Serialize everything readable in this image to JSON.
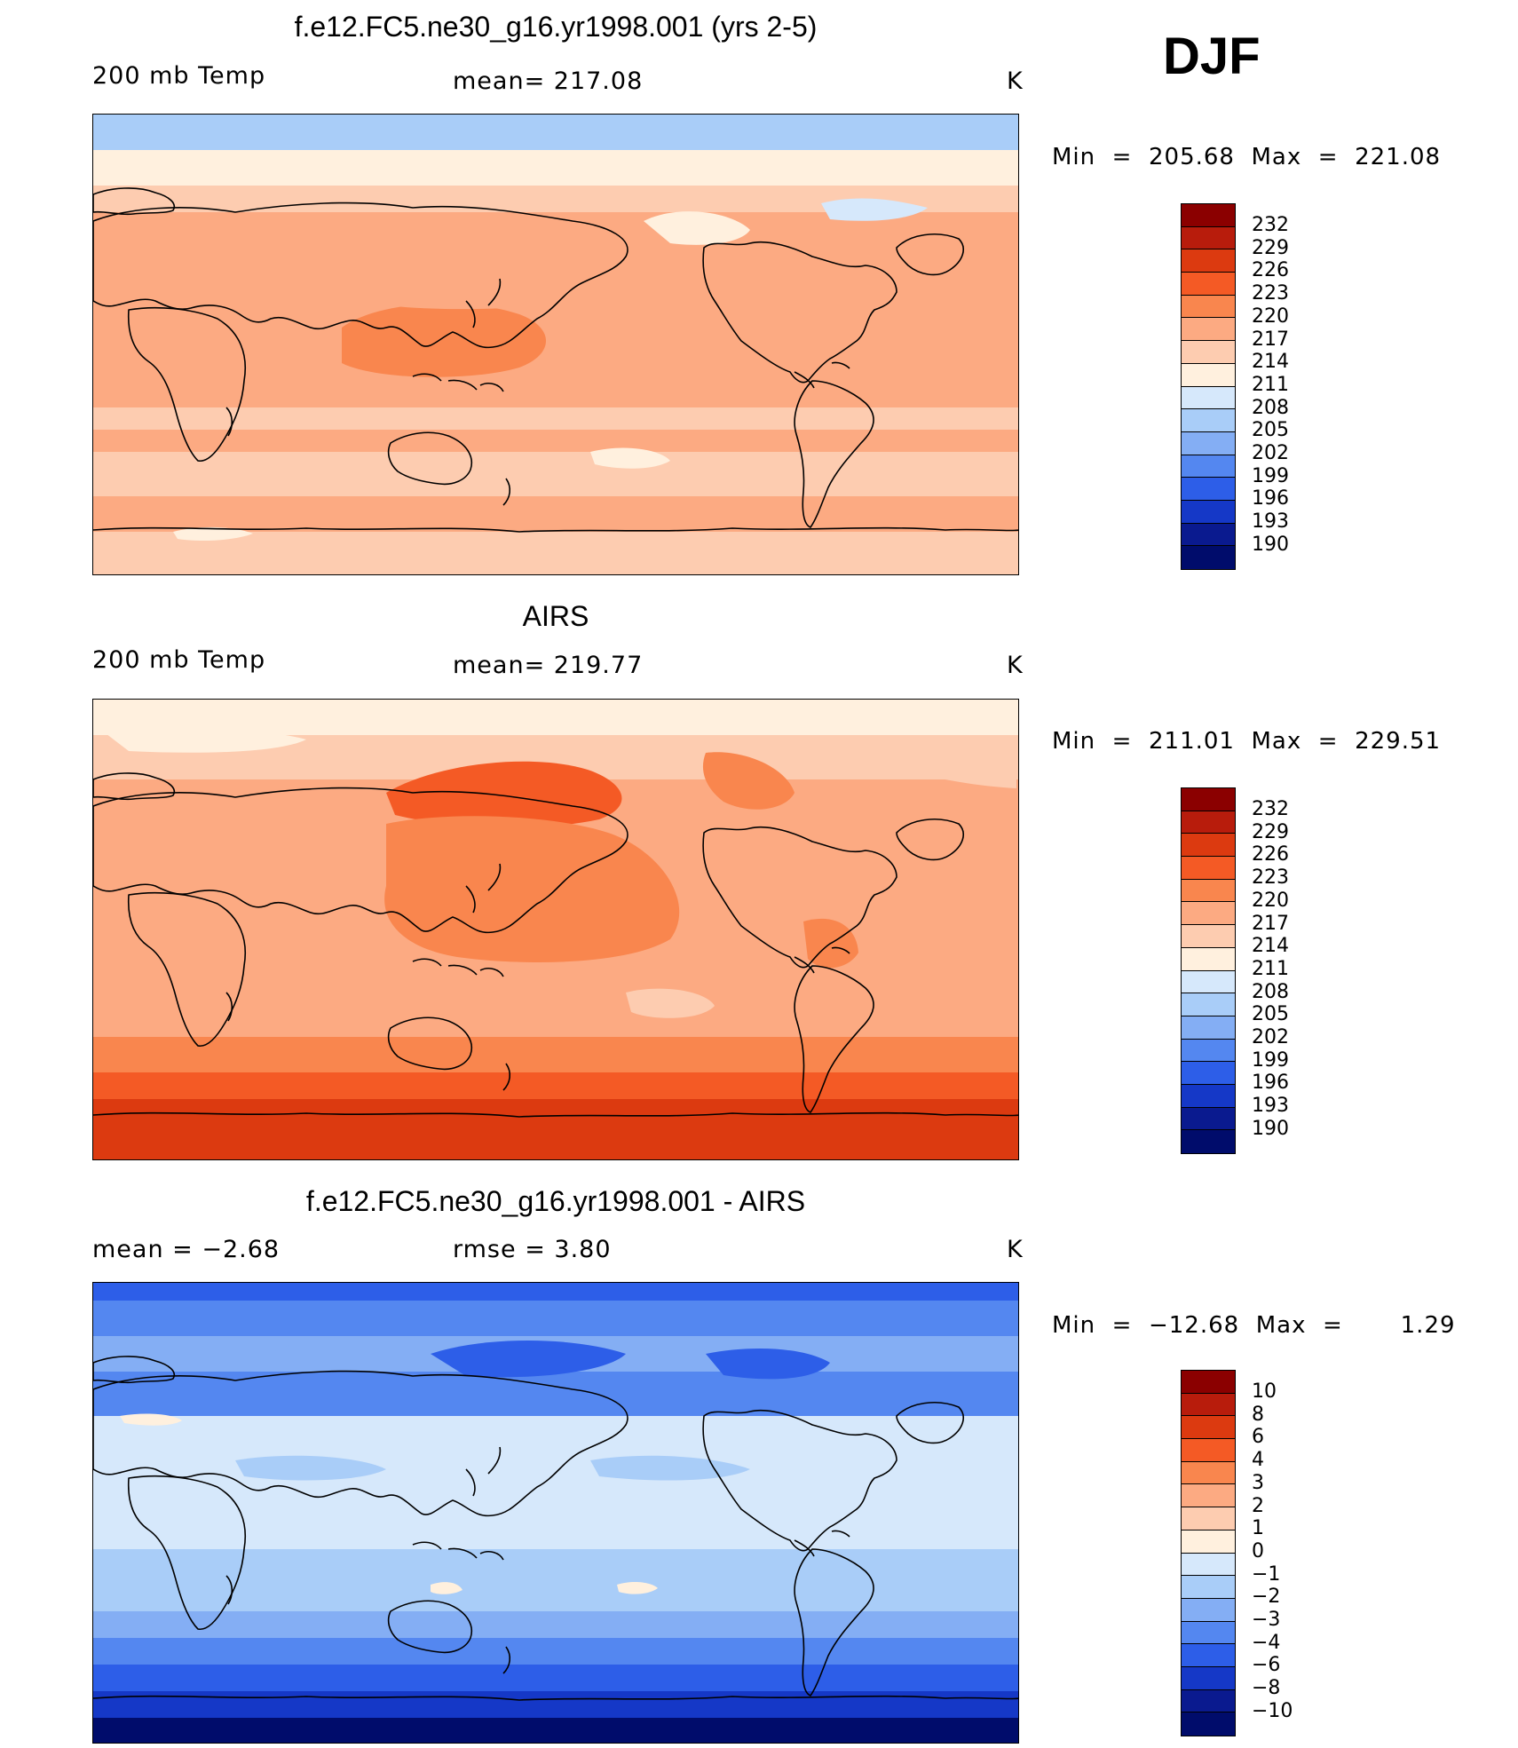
{
  "season": "DJF",
  "panels": [
    {
      "title": "f.e12.FC5.ne30_g16.yr1998.001 (yrs 2-5)",
      "left_label": "200 mb Temp",
      "mid_label": "mean= 217.08",
      "unit": "K",
      "minmax": "Min  =  205.68  Max  =  221.08",
      "palette": "warm-model",
      "colorbar": {
        "labels": [
          "232",
          "229",
          "226",
          "223",
          "220",
          "217",
          "214",
          "211",
          "208",
          "205",
          "202",
          "199",
          "196",
          "193",
          "190"
        ],
        "colors": [
          "#8b0000",
          "#b81c0c",
          "#dc3a10",
          "#f45a25",
          "#f9864e",
          "#fcaa82",
          "#fdccb0",
          "#fff0de",
          "#d6e8fb",
          "#a9cdf8",
          "#84aef4",
          "#5487f0",
          "#2d5ee8",
          "#1538c7",
          "#0a1a8f",
          "#000c6b"
        ]
      }
    },
    {
      "title": "AIRS",
      "left_label": "200 mb Temp",
      "mid_label": "mean= 219.77",
      "unit": "K",
      "minmax": "Min  =  211.01  Max  =  229.51",
      "palette": "warm-obs",
      "colorbar": {
        "labels": [
          "232",
          "229",
          "226",
          "223",
          "220",
          "217",
          "214",
          "211",
          "208",
          "205",
          "202",
          "199",
          "196",
          "193",
          "190"
        ],
        "colors": [
          "#8b0000",
          "#b81c0c",
          "#dc3a10",
          "#f45a25",
          "#f9864e",
          "#fcaa82",
          "#fdccb0",
          "#fff0de",
          "#d6e8fb",
          "#a9cdf8",
          "#84aef4",
          "#5487f0",
          "#2d5ee8",
          "#1538c7",
          "#0a1a8f",
          "#000c6b"
        ]
      }
    },
    {
      "title": "f.e12.FC5.ne30_g16.yr1998.001 - AIRS",
      "left_label": "mean  =    −2.68",
      "mid_label": "rmse  =     3.80",
      "unit": "K",
      "minmax": "Min  =  −12.68  Max  =       1.29",
      "palette": "diff",
      "colorbar": {
        "labels": [
          "10",
          "8",
          "6",
          "4",
          "3",
          "2",
          "1",
          "0",
          "−1",
          "−2",
          "−3",
          "−4",
          "−6",
          "−8",
          "−10"
        ],
        "colors": [
          "#8b0000",
          "#b81c0c",
          "#dc3a10",
          "#f45a25",
          "#f9864e",
          "#fcaa82",
          "#fdccb0",
          "#fff0de",
          "#d6e8fb",
          "#a9cdf8",
          "#84aef4",
          "#5487f0",
          "#2d5ee8",
          "#1538c7",
          "#0a1a8f",
          "#000c6b"
        ]
      }
    }
  ]
}
